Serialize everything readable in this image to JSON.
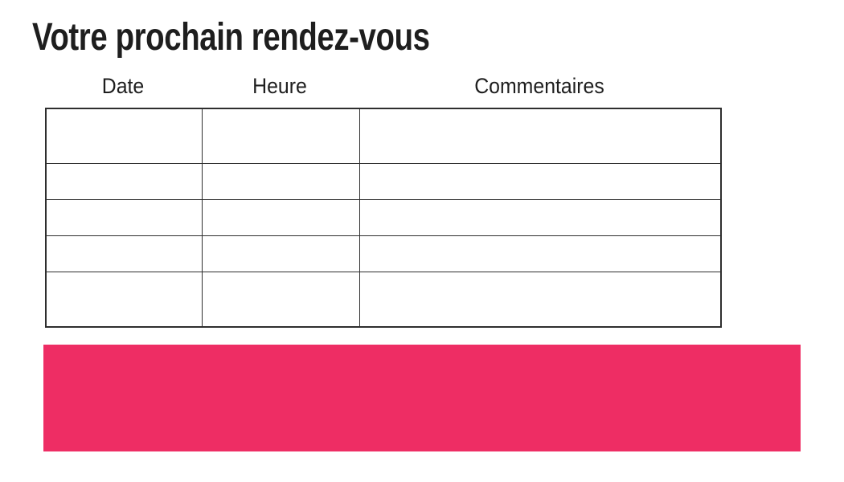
{
  "page": {
    "title": "Votre prochain rendez-vous"
  },
  "table": {
    "columns": [
      {
        "label": "Date"
      },
      {
        "label": "Heure"
      },
      {
        "label": "Commentaires"
      }
    ],
    "rows": [
      [
        "",
        "",
        ""
      ],
      [
        "",
        "",
        ""
      ],
      [
        "",
        "",
        ""
      ],
      [
        "",
        "",
        ""
      ],
      [
        "",
        "",
        ""
      ]
    ]
  },
  "banner": {
    "text": ""
  },
  "colors": {
    "accent_pink": "#EE2D64",
    "table_border": "#2E2E2E",
    "text": "#1E1E1E",
    "background": "#FFFFFF"
  }
}
